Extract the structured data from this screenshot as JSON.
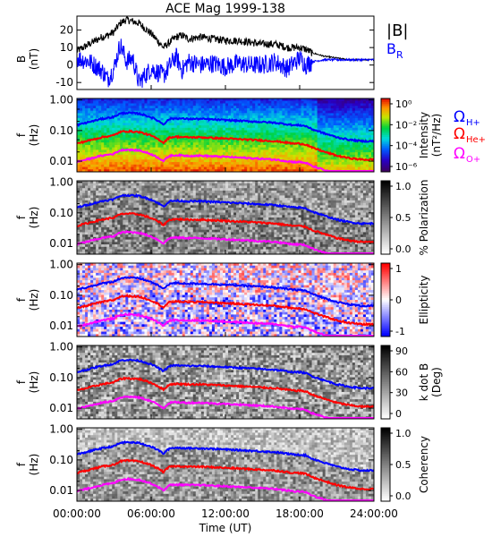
{
  "chart_data": [
    {
      "type": "line",
      "title": "ACE Mag 1999-138",
      "ylabel": "B",
      "yunit": "(nT)",
      "ylim": [
        -14,
        28
      ],
      "yticks": [
        "20",
        "10",
        "0",
        "-10"
      ],
      "x_ticks_hours": [
        0,
        6,
        12,
        18,
        24
      ],
      "series": [
        {
          "name": "|B|",
          "color": "#000000",
          "x": [
            0,
            1,
            2,
            2.5,
            3,
            3.5,
            4,
            4.5,
            5,
            6,
            7,
            8,
            8.5,
            9,
            10,
            11,
            12,
            13,
            14,
            15,
            16,
            17,
            18,
            18.5,
            19,
            20,
            21,
            22,
            23,
            24
          ],
          "y": [
            8,
            12,
            16,
            17,
            19,
            24,
            26,
            25,
            24,
            18,
            10,
            16,
            17,
            15,
            16,
            15,
            14,
            14,
            13,
            12,
            12,
            10,
            10,
            9,
            7,
            5,
            4,
            3,
            3,
            3
          ]
        },
        {
          "name": "B_R",
          "label_main": "B",
          "label_sub": "R",
          "color": "#0000ff",
          "x": [
            0,
            1,
            2,
            2.5,
            3,
            3.5,
            4,
            4.5,
            5,
            6,
            7,
            8,
            8.5,
            9,
            10,
            11,
            12,
            13,
            14,
            15,
            16,
            17,
            18,
            18.5,
            19,
            20,
            21,
            22,
            23,
            24
          ],
          "y": [
            4,
            2,
            -3,
            -8,
            -2,
            12,
            2,
            4,
            -10,
            -2,
            -6,
            5,
            -3,
            2,
            0,
            1,
            -1,
            1,
            0,
            0,
            2,
            -2,
            4,
            0,
            2,
            3,
            3,
            3,
            3,
            3
          ]
        }
      ]
    },
    {
      "type": "heatmap",
      "ylabel": "f",
      "yunit": "(Hz)",
      "yticks": [
        "1.00",
        "0.10",
        "0.01"
      ],
      "colorbar": {
        "label": "Intensity",
        "unit": "(nT²/Hz)",
        "ticks": [
          "10⁰",
          "10⁻²",
          "10⁻⁴",
          "10⁻⁶"
        ],
        "colormap": "rainbow"
      },
      "overlay_legend": [
        "Ω_H+",
        "Ω_He+",
        "Ω_O+"
      ]
    },
    {
      "type": "heatmap",
      "ylabel": "f",
      "yunit": "(Hz)",
      "yticks": [
        "1.00",
        "0.10",
        "0.01"
      ],
      "colorbar": {
        "label": "% Polarization",
        "ticks": [
          "1.0",
          "0.5",
          "0.0"
        ],
        "colormap": "gray"
      }
    },
    {
      "type": "heatmap",
      "ylabel": "f",
      "yunit": "(Hz)",
      "yticks": [
        "1.00",
        "0.10",
        "0.01"
      ],
      "colorbar": {
        "label": "Ellipticity",
        "ticks": [
          "1",
          "0",
          "-1"
        ],
        "colormap": "red-white-blue"
      }
    },
    {
      "type": "heatmap",
      "ylabel": "f",
      "yunit": "(Hz)",
      "yticks": [
        "1.00",
        "0.10",
        "0.01"
      ],
      "colorbar": {
        "label": "k dot B",
        "unit": "(Deg)",
        "ticks": [
          "90",
          "60",
          "30",
          "0"
        ],
        "colormap": "gray"
      }
    },
    {
      "type": "heatmap",
      "ylabel": "f",
      "yunit": "(Hz)",
      "yticks": [
        "1.00",
        "0.10",
        "0.01"
      ],
      "colorbar": {
        "label": "Coherency",
        "ticks": [
          "1.0",
          "0.5",
          "0.0"
        ],
        "colormap": "gray"
      }
    }
  ],
  "gyro_lines": {
    "hours": [
      0,
      1,
      2,
      3,
      3.5,
      4,
      5,
      6,
      7,
      7.5,
      8,
      9,
      10,
      11,
      12,
      13,
      14,
      15,
      16,
      17,
      17.5,
      18,
      18.5,
      19,
      20,
      21,
      22,
      23,
      24
    ],
    "H_plus_hz": [
      0.15,
      0.19,
      0.24,
      0.28,
      0.36,
      0.38,
      0.36,
      0.27,
      0.16,
      0.24,
      0.25,
      0.24,
      0.24,
      0.23,
      0.22,
      0.21,
      0.2,
      0.19,
      0.18,
      0.16,
      0.15,
      0.15,
      0.14,
      0.11,
      0.08,
      0.06,
      0.05,
      0.045,
      0.045
    ],
    "colors": {
      "H": "#0000ff",
      "He": "#ff0000",
      "O": "#ff00ff"
    }
  },
  "xaxis": {
    "ticks": [
      "00:00:00",
      "06:00:00",
      "12:00:00",
      "18:00:00",
      "24:00:00"
    ],
    "label": "Time (UT)"
  }
}
